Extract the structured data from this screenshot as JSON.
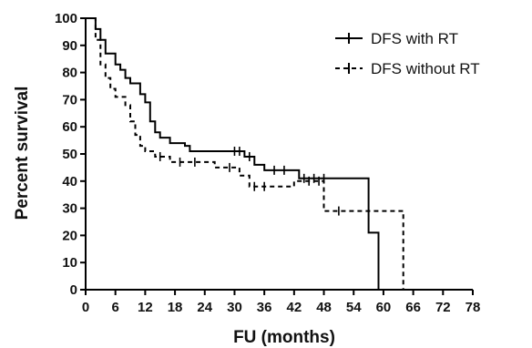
{
  "chart_data": {
    "type": "line",
    "xlabel": "FU (months)",
    "ylabel": "Percent survival",
    "xlim": [
      0,
      78
    ],
    "ylim": [
      0,
      100
    ],
    "x_ticks": [
      0,
      6,
      12,
      18,
      24,
      30,
      36,
      42,
      48,
      54,
      60,
      66,
      72,
      78
    ],
    "y_ticks": [
      0,
      10,
      20,
      30,
      40,
      50,
      60,
      70,
      80,
      90,
      100
    ],
    "grid": false,
    "legend_position": "top-right",
    "series": [
      {
        "name": "DFS with RT",
        "line_style": "solid",
        "color": "#000000",
        "steps": [
          [
            0,
            100
          ],
          [
            2,
            100
          ],
          [
            2,
            96
          ],
          [
            3,
            96
          ],
          [
            3,
            92
          ],
          [
            4,
            92
          ],
          [
            4,
            87
          ],
          [
            6,
            87
          ],
          [
            6,
            83
          ],
          [
            7,
            83
          ],
          [
            7,
            81
          ],
          [
            8,
            81
          ],
          [
            8,
            78
          ],
          [
            9,
            78
          ],
          [
            9,
            76
          ],
          [
            11,
            76
          ],
          [
            11,
            72
          ],
          [
            12,
            72
          ],
          [
            12,
            69
          ],
          [
            13,
            69
          ],
          [
            13,
            62
          ],
          [
            14,
            62
          ],
          [
            14,
            58
          ],
          [
            15,
            58
          ],
          [
            15,
            56
          ],
          [
            17,
            56
          ],
          [
            17,
            54
          ],
          [
            20,
            54
          ],
          [
            20,
            53
          ],
          [
            21,
            53
          ],
          [
            21,
            51
          ],
          [
            32,
            51
          ],
          [
            32,
            49
          ],
          [
            34,
            49
          ],
          [
            34,
            46
          ],
          [
            36,
            46
          ],
          [
            36,
            44
          ],
          [
            43,
            44
          ],
          [
            43,
            41
          ],
          [
            57,
            41
          ],
          [
            57,
            21
          ],
          [
            59,
            21
          ],
          [
            59,
            0
          ],
          [
            60,
            0
          ]
        ],
        "censors": [
          [
            30,
            51
          ],
          [
            31,
            51
          ],
          [
            33,
            49
          ],
          [
            38,
            44
          ],
          [
            40,
            44
          ],
          [
            44,
            41
          ],
          [
            46,
            41
          ],
          [
            48,
            41
          ]
        ]
      },
      {
        "name": "DFS without RT",
        "line_style": "dashed",
        "color": "#000000",
        "steps": [
          [
            0,
            100
          ],
          [
            2,
            100
          ],
          [
            2,
            92
          ],
          [
            3,
            92
          ],
          [
            3,
            83
          ],
          [
            4,
            83
          ],
          [
            4,
            78
          ],
          [
            5,
            78
          ],
          [
            5,
            74
          ],
          [
            6,
            74
          ],
          [
            6,
            71
          ],
          [
            8,
            71
          ],
          [
            8,
            68
          ],
          [
            9,
            68
          ],
          [
            9,
            62
          ],
          [
            10,
            62
          ],
          [
            10,
            57
          ],
          [
            11,
            57
          ],
          [
            11,
            53
          ],
          [
            12,
            53
          ],
          [
            12,
            51
          ],
          [
            14,
            51
          ],
          [
            14,
            49
          ],
          [
            17,
            49
          ],
          [
            17,
            47
          ],
          [
            26,
            47
          ],
          [
            26,
            45
          ],
          [
            31,
            45
          ],
          [
            31,
            42
          ],
          [
            33,
            42
          ],
          [
            33,
            38
          ],
          [
            42,
            38
          ],
          [
            42,
            40
          ],
          [
            48,
            40
          ],
          [
            48,
            29
          ],
          [
            64,
            29
          ],
          [
            64,
            0
          ],
          [
            65,
            0
          ]
        ],
        "censors": [
          [
            15,
            49
          ],
          [
            19,
            47
          ],
          [
            22,
            47
          ],
          [
            29,
            45
          ],
          [
            34,
            38
          ],
          [
            36,
            38
          ],
          [
            45,
            40
          ],
          [
            47,
            40
          ],
          [
            51,
            29
          ]
        ]
      }
    ]
  }
}
